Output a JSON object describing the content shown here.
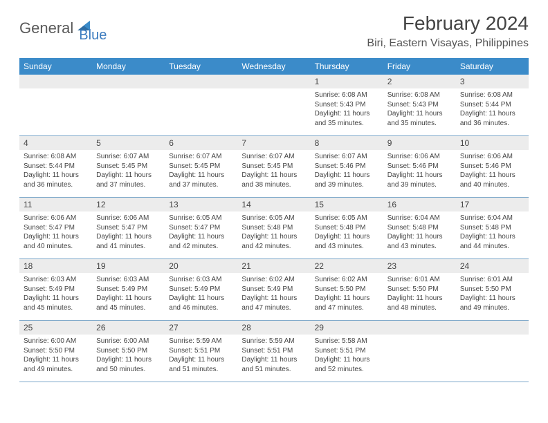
{
  "brand": {
    "part1": "General",
    "part2": "Blue"
  },
  "title": "February 2024",
  "location": "Biri, Eastern Visayas, Philippines",
  "colors": {
    "header_bg": "#3b8bc9",
    "header_text": "#ffffff",
    "daynum_bg": "#ececec",
    "border": "#7aa6c9",
    "text": "#444444",
    "brand_gray": "#5a5a5a",
    "brand_blue": "#3b7bbf"
  },
  "weekdays": [
    "Sunday",
    "Monday",
    "Tuesday",
    "Wednesday",
    "Thursday",
    "Friday",
    "Saturday"
  ],
  "weeks": [
    [
      null,
      null,
      null,
      null,
      {
        "n": "1",
        "sr": "Sunrise: 6:08 AM",
        "ss": "Sunset: 5:43 PM",
        "dl": "Daylight: 11 hours and 35 minutes."
      },
      {
        "n": "2",
        "sr": "Sunrise: 6:08 AM",
        "ss": "Sunset: 5:43 PM",
        "dl": "Daylight: 11 hours and 35 minutes."
      },
      {
        "n": "3",
        "sr": "Sunrise: 6:08 AM",
        "ss": "Sunset: 5:44 PM",
        "dl": "Daylight: 11 hours and 36 minutes."
      }
    ],
    [
      {
        "n": "4",
        "sr": "Sunrise: 6:08 AM",
        "ss": "Sunset: 5:44 PM",
        "dl": "Daylight: 11 hours and 36 minutes."
      },
      {
        "n": "5",
        "sr": "Sunrise: 6:07 AM",
        "ss": "Sunset: 5:45 PM",
        "dl": "Daylight: 11 hours and 37 minutes."
      },
      {
        "n": "6",
        "sr": "Sunrise: 6:07 AM",
        "ss": "Sunset: 5:45 PM",
        "dl": "Daylight: 11 hours and 37 minutes."
      },
      {
        "n": "7",
        "sr": "Sunrise: 6:07 AM",
        "ss": "Sunset: 5:45 PM",
        "dl": "Daylight: 11 hours and 38 minutes."
      },
      {
        "n": "8",
        "sr": "Sunrise: 6:07 AM",
        "ss": "Sunset: 5:46 PM",
        "dl": "Daylight: 11 hours and 39 minutes."
      },
      {
        "n": "9",
        "sr": "Sunrise: 6:06 AM",
        "ss": "Sunset: 5:46 PM",
        "dl": "Daylight: 11 hours and 39 minutes."
      },
      {
        "n": "10",
        "sr": "Sunrise: 6:06 AM",
        "ss": "Sunset: 5:46 PM",
        "dl": "Daylight: 11 hours and 40 minutes."
      }
    ],
    [
      {
        "n": "11",
        "sr": "Sunrise: 6:06 AM",
        "ss": "Sunset: 5:47 PM",
        "dl": "Daylight: 11 hours and 40 minutes."
      },
      {
        "n": "12",
        "sr": "Sunrise: 6:06 AM",
        "ss": "Sunset: 5:47 PM",
        "dl": "Daylight: 11 hours and 41 minutes."
      },
      {
        "n": "13",
        "sr": "Sunrise: 6:05 AM",
        "ss": "Sunset: 5:47 PM",
        "dl": "Daylight: 11 hours and 42 minutes."
      },
      {
        "n": "14",
        "sr": "Sunrise: 6:05 AM",
        "ss": "Sunset: 5:48 PM",
        "dl": "Daylight: 11 hours and 42 minutes."
      },
      {
        "n": "15",
        "sr": "Sunrise: 6:05 AM",
        "ss": "Sunset: 5:48 PM",
        "dl": "Daylight: 11 hours and 43 minutes."
      },
      {
        "n": "16",
        "sr": "Sunrise: 6:04 AM",
        "ss": "Sunset: 5:48 PM",
        "dl": "Daylight: 11 hours and 43 minutes."
      },
      {
        "n": "17",
        "sr": "Sunrise: 6:04 AM",
        "ss": "Sunset: 5:48 PM",
        "dl": "Daylight: 11 hours and 44 minutes."
      }
    ],
    [
      {
        "n": "18",
        "sr": "Sunrise: 6:03 AM",
        "ss": "Sunset: 5:49 PM",
        "dl": "Daylight: 11 hours and 45 minutes."
      },
      {
        "n": "19",
        "sr": "Sunrise: 6:03 AM",
        "ss": "Sunset: 5:49 PM",
        "dl": "Daylight: 11 hours and 45 minutes."
      },
      {
        "n": "20",
        "sr": "Sunrise: 6:03 AM",
        "ss": "Sunset: 5:49 PM",
        "dl": "Daylight: 11 hours and 46 minutes."
      },
      {
        "n": "21",
        "sr": "Sunrise: 6:02 AM",
        "ss": "Sunset: 5:49 PM",
        "dl": "Daylight: 11 hours and 47 minutes."
      },
      {
        "n": "22",
        "sr": "Sunrise: 6:02 AM",
        "ss": "Sunset: 5:50 PM",
        "dl": "Daylight: 11 hours and 47 minutes."
      },
      {
        "n": "23",
        "sr": "Sunrise: 6:01 AM",
        "ss": "Sunset: 5:50 PM",
        "dl": "Daylight: 11 hours and 48 minutes."
      },
      {
        "n": "24",
        "sr": "Sunrise: 6:01 AM",
        "ss": "Sunset: 5:50 PM",
        "dl": "Daylight: 11 hours and 49 minutes."
      }
    ],
    [
      {
        "n": "25",
        "sr": "Sunrise: 6:00 AM",
        "ss": "Sunset: 5:50 PM",
        "dl": "Daylight: 11 hours and 49 minutes."
      },
      {
        "n": "26",
        "sr": "Sunrise: 6:00 AM",
        "ss": "Sunset: 5:50 PM",
        "dl": "Daylight: 11 hours and 50 minutes."
      },
      {
        "n": "27",
        "sr": "Sunrise: 5:59 AM",
        "ss": "Sunset: 5:51 PM",
        "dl": "Daylight: 11 hours and 51 minutes."
      },
      {
        "n": "28",
        "sr": "Sunrise: 5:59 AM",
        "ss": "Sunset: 5:51 PM",
        "dl": "Daylight: 11 hours and 51 minutes."
      },
      {
        "n": "29",
        "sr": "Sunrise: 5:58 AM",
        "ss": "Sunset: 5:51 PM",
        "dl": "Daylight: 11 hours and 52 minutes."
      },
      null,
      null
    ]
  ]
}
